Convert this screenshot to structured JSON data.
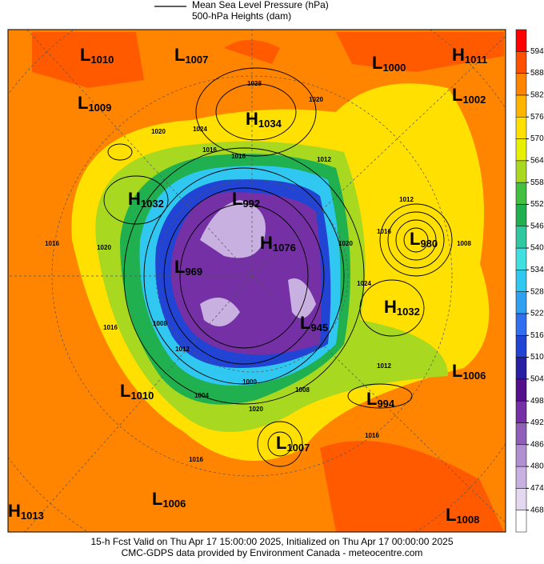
{
  "legend": {
    "line_1": "Mean Sea Level Pressure (hPa)",
    "line_2": "500-hPa Heights (dam)"
  },
  "colorbar": {
    "ticks": [
      468,
      474,
      480,
      486,
      492,
      498,
      504,
      510,
      516,
      522,
      528,
      534,
      540,
      546,
      552,
      558,
      564,
      570,
      576,
      582,
      588,
      594
    ],
    "colors": [
      "#ffffff",
      "#e4d8f0",
      "#c8b0e0",
      "#b090d0",
      "#9060b8",
      "#7430a4",
      "#54108c",
      "#2820a4",
      "#2244d4",
      "#3070f0",
      "#30a0f0",
      "#30c8f0",
      "#40e0e0",
      "#30c8a0",
      "#20b050",
      "#44c040",
      "#a8d820",
      "#e6f000",
      "#ffe000",
      "#ffb400",
      "#ff8400",
      "#ff5000",
      "#ff0000"
    ]
  },
  "centers": [
    {
      "letter": "L",
      "value": 1010
    },
    {
      "letter": "L",
      "value": 1007
    },
    {
      "letter": "L",
      "value": 1000
    },
    {
      "letter": "H",
      "value": 1011
    },
    {
      "letter": "L",
      "value": 1009
    },
    {
      "letter": "L",
      "value": 1002
    },
    {
      "letter": "H",
      "value": 1034
    },
    {
      "letter": "H",
      "value": 1032
    },
    {
      "letter": "L",
      "value": 992
    },
    {
      "letter": "H",
      "value": 1076
    },
    {
      "letter": "L",
      "value": 980
    },
    {
      "letter": "L",
      "value": 969
    },
    {
      "letter": "H",
      "value": 1032
    },
    {
      "letter": "L",
      "value": 945
    },
    {
      "letter": "L",
      "value": 1006
    },
    {
      "letter": "L",
      "value": 1010
    },
    {
      "letter": "L",
      "value": 994
    },
    {
      "letter": "L",
      "value": 1007
    },
    {
      "letter": "H",
      "value": 1013
    },
    {
      "letter": "L",
      "value": 1006
    },
    {
      "letter": "L",
      "value": 1008
    }
  ],
  "contour_labels": [
    1028,
    1020,
    1020,
    1024,
    1016,
    1016,
    1012,
    1012,
    1016,
    1008,
    1016,
    1020,
    1024,
    1020,
    1016,
    1008,
    1012,
    1012,
    1008,
    1020,
    1000,
    1016,
    1016,
    1004
  ],
  "footer": {
    "line_1": "15-h Fcst Valid on Thu Apr 17 15:00:00 2025, Initialized on Thu Apr 17 00:00:00 2025",
    "line_2": "CMC-GDPS data provided by Environment Canada - meteocentre.com"
  }
}
